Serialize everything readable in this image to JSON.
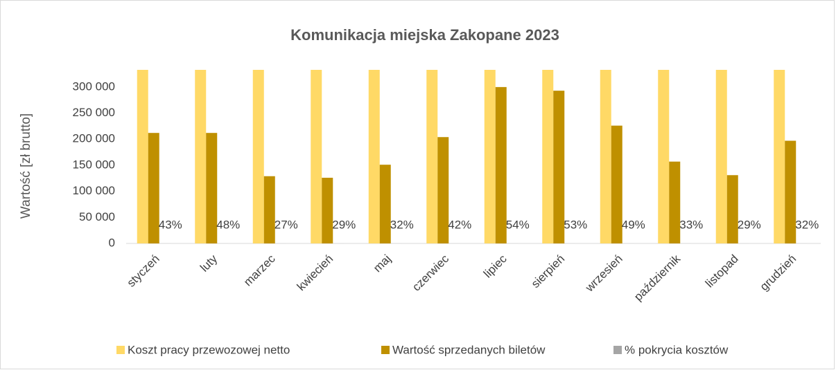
{
  "chart_data": {
    "type": "bar",
    "title": "Komunikacja miejska Zakopane 2023",
    "y_label": "Wartość [zł brutto]",
    "categories": [
      "styczeń",
      "luty",
      "marzec",
      "kwiecień",
      "maj",
      "czerwiec",
      "lipiec",
      "sierpień",
      "wrzesień",
      "październik",
      "listopad",
      "grudzień"
    ],
    "series": [
      {
        "name": "Koszt pracy przewozowej netto",
        "color": "#ffd966",
        "values": [
          333000,
          333000,
          333000,
          333000,
          333000,
          333000,
          333000,
          333000,
          333000,
          333000,
          333000,
          333000
        ]
      },
      {
        "name": "Wartość sprzedanych biletów",
        "color": "#bf9000",
        "values": [
          212000,
          212000,
          129000,
          126000,
          151000,
          204000,
          300000,
          293000,
          226000,
          157000,
          131000,
          197000
        ]
      },
      {
        "name": "% pokrycia kosztów",
        "color": "#a5a5a5",
        "values": [
          43,
          48,
          27,
          29,
          32,
          42,
          54,
          53,
          49,
          33,
          29,
          32
        ],
        "value_labels": [
          "43%",
          "48%",
          "27%",
          "29%",
          "32%",
          "42%",
          "54%",
          "53%",
          "49%",
          "33%",
          "29%",
          "32%"
        ]
      }
    ],
    "ylim": [
      0,
      333000
    ],
    "yticks": [
      0,
      {
        "value": 50000,
        "label": "50 000"
      },
      {
        "value": 100000,
        "label": "100 000"
      },
      {
        "value": 150000,
        "label": "150 000"
      },
      {
        "value": 200000,
        "label": "200 000"
      },
      {
        "value": 250000,
        "label": "250 000"
      },
      {
        "value": 300000,
        "label": "300 000"
      }
    ],
    "legend": "bottom"
  }
}
